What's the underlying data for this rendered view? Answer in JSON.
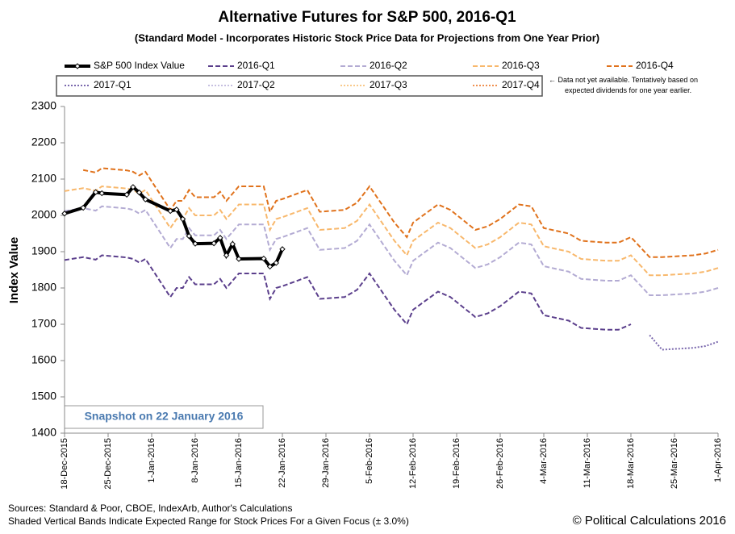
{
  "chart_data": {
    "type": "line",
    "title": "Alternative Futures for S&P 500, 2016-Q1",
    "subtitle": "(Standard Model - Incorporates Historic Stock Price Data for Projections from One Year Prior)",
    "y_label": "Index Value",
    "note": "← Data not yet available. Tentatively based on expected dividends for one year earlier.",
    "snapshot": "Snapshot on 22 January 2016",
    "sources": "Sources: Standard & Poor, CBOE, IndexArb, Author's Calculations",
    "bands_note": "Shaded Vertical Bands Indicate Expected Range for Stock Prices For a Given Focus (± 3.0%)",
    "copyright": "© Political Calculations 2016",
    "x": [
      "2015-12-18",
      "2015-12-21",
      "2015-12-23",
      "2015-12-24",
      "2015-12-28",
      "2015-12-29",
      "2015-12-30",
      "2015-12-31",
      "2016-01-04",
      "2016-01-05",
      "2016-01-06",
      "2016-01-07",
      "2016-01-08",
      "2016-01-11",
      "2016-01-12",
      "2016-01-13",
      "2016-01-14",
      "2016-01-15",
      "2016-01-19",
      "2016-01-20",
      "2016-01-21",
      "2016-01-22",
      "2016-01-26",
      "2016-01-28",
      "2016-02-01",
      "2016-02-03",
      "2016-02-05",
      "2016-02-09",
      "2016-02-11",
      "2016-02-12",
      "2016-02-16",
      "2016-02-18",
      "2016-02-22",
      "2016-02-24",
      "2016-02-26",
      "2016-02-29",
      "2016-03-02",
      "2016-03-04",
      "2016-03-08",
      "2016-03-10",
      "2016-03-14",
      "2016-03-16",
      "2016-03-18",
      "2016-03-21",
      "2016-03-23",
      "2016-03-28",
      "2016-03-30",
      "2016-04-01"
    ],
    "series": [
      {
        "name": "S&P 500 Index Value",
        "color": "#000000",
        "style": "solid",
        "values": [
          2005,
          2021,
          2064,
          2061,
          2057,
          2078,
          2063,
          2044,
          2012,
          2016,
          1990,
          1943,
          1922,
          1923,
          1938,
          1890,
          1921,
          1880,
          1881,
          1859,
          1869,
          1907,
          null,
          null,
          null,
          null,
          null,
          null,
          null,
          null,
          null,
          null,
          null,
          null,
          null,
          null,
          null,
          null,
          null,
          null,
          null,
          null,
          null,
          null,
          null,
          null,
          null,
          null
        ]
      },
      {
        "name": "2016-Q1",
        "color": "#5b3f8c",
        "style": "dashed",
        "values": [
          1877,
          1885,
          1878,
          1890,
          1884,
          1880,
          1870,
          1880,
          1775,
          1800,
          1800,
          1830,
          1810,
          1810,
          1825,
          1800,
          1820,
          1840,
          1840,
          1770,
          1800,
          1805,
          1830,
          1770,
          1775,
          1795,
          1840,
          1740,
          1700,
          1740,
          1790,
          1775,
          1720,
          1730,
          1750,
          1790,
          1785,
          1725,
          1710,
          1690,
          1685,
          1685,
          1700,
          null,
          null,
          null,
          null,
          null
        ]
      },
      {
        "name": "2016-Q2",
        "color": "#b3abd3",
        "style": "dashed",
        "values": [
          2012,
          2020,
          2013,
          2025,
          2019,
          2015,
          2005,
          2015,
          1910,
          1935,
          1935,
          1965,
          1945,
          1945,
          1960,
          1935,
          1955,
          1975,
          1975,
          1905,
          1935,
          1940,
          1965,
          1905,
          1910,
          1930,
          1975,
          1875,
          1835,
          1875,
          1925,
          1910,
          1855,
          1865,
          1885,
          1925,
          1920,
          1860,
          1845,
          1825,
          1820,
          1820,
          1835,
          1780,
          1780,
          1785,
          1790,
          1800
        ]
      },
      {
        "name": "2016-Q3",
        "color": "#f8b86c",
        "style": "dashed",
        "values": [
          2067,
          2075,
          2068,
          2080,
          2074,
          2070,
          2060,
          2070,
          1965,
          1990,
          1990,
          2020,
          2000,
          2000,
          2015,
          1990,
          2010,
          2030,
          2030,
          1960,
          1990,
          1995,
          2020,
          1960,
          1965,
          1985,
          2030,
          1930,
          1890,
          1930,
          1980,
          1965,
          1910,
          1920,
          1940,
          1980,
          1975,
          1915,
          1900,
          1880,
          1875,
          1875,
          1890,
          1835,
          1835,
          1840,
          1845,
          1855
        ]
      },
      {
        "name": "2016-Q4",
        "color": "#e0721c",
        "style": "dashed",
        "values": [
          null,
          2125,
          2118,
          2130,
          2124,
          2120,
          2110,
          2120,
          2015,
          2040,
          2040,
          2070,
          2050,
          2050,
          2065,
          2040,
          2060,
          2080,
          2080,
          2010,
          2040,
          2045,
          2070,
          2010,
          2015,
          2035,
          2080,
          1980,
          1940,
          1980,
          2030,
          2015,
          1960,
          1970,
          1990,
          2030,
          2025,
          1965,
          1950,
          1930,
          1925,
          1925,
          1940,
          1885,
          1885,
          1890,
          1895,
          1905
        ]
      },
      {
        "name": "2017-Q1",
        "color": "#7a68ad",
        "style": "dotted",
        "values": [
          null,
          null,
          null,
          null,
          null,
          null,
          null,
          null,
          null,
          null,
          null,
          null,
          null,
          null,
          null,
          null,
          null,
          null,
          null,
          null,
          null,
          null,
          null,
          null,
          null,
          null,
          null,
          null,
          null,
          null,
          null,
          null,
          null,
          null,
          null,
          null,
          null,
          null,
          null,
          null,
          null,
          null,
          null,
          1670,
          1630,
          1635,
          1640,
          1652
        ]
      },
      {
        "name": "2017-Q2",
        "color": "#c6bfe0",
        "style": "dotted",
        "values": [
          null,
          null,
          null,
          null,
          null,
          null,
          null,
          null,
          null,
          null,
          null,
          null,
          null,
          null,
          null,
          null,
          null,
          null,
          null,
          null,
          null,
          null,
          null,
          null,
          null,
          null,
          null,
          null,
          null,
          null,
          null,
          null,
          null,
          null,
          null,
          null,
          null,
          null,
          null,
          null,
          null,
          null,
          null,
          null,
          null,
          null,
          null,
          null
        ]
      },
      {
        "name": "2017-Q3",
        "color": "#f9c98a",
        "style": "dotted",
        "values": [
          null,
          null,
          null,
          null,
          null,
          null,
          null,
          null,
          null,
          null,
          null,
          null,
          null,
          null,
          null,
          null,
          null,
          null,
          null,
          null,
          null,
          null,
          null,
          null,
          null,
          null,
          null,
          null,
          null,
          null,
          null,
          null,
          null,
          null,
          null,
          null,
          null,
          null,
          null,
          null,
          null,
          null,
          null,
          null,
          null,
          null,
          null,
          null
        ]
      },
      {
        "name": "2017-Q4",
        "color": "#f09050",
        "style": "dotted",
        "values": [
          null,
          null,
          null,
          null,
          null,
          null,
          null,
          null,
          null,
          null,
          null,
          null,
          null,
          null,
          null,
          null,
          null,
          null,
          null,
          null,
          null,
          null,
          null,
          null,
          null,
          null,
          null,
          null,
          null,
          null,
          null,
          null,
          null,
          null,
          null,
          null,
          null,
          null,
          null,
          null,
          null,
          null,
          null,
          null,
          null,
          null,
          null,
          null
        ]
      }
    ],
    "xlim": [
      "2015-12-18",
      "2016-04-01"
    ],
    "xticks": [
      {
        "value": "2015-12-18",
        "label": "18-Dec-2015"
      },
      {
        "value": "2015-12-25",
        "label": "25-Dec-2015"
      },
      {
        "value": "2016-01-01",
        "label": "1-Jan-2016"
      },
      {
        "value": "2016-01-08",
        "label": "8-Jan-2016"
      },
      {
        "value": "2016-01-15",
        "label": "15-Jan-2016"
      },
      {
        "value": "2016-01-22",
        "label": "22-Jan-2016"
      },
      {
        "value": "2016-01-29",
        "label": "29-Jan-2016"
      },
      {
        "value": "2016-02-05",
        "label": "5-Feb-2016"
      },
      {
        "value": "2016-02-12",
        "label": "12-Feb-2016"
      },
      {
        "value": "2016-02-19",
        "label": "19-Feb-2016"
      },
      {
        "value": "2016-02-26",
        "label": "26-Feb-2016"
      },
      {
        "value": "2016-03-04",
        "label": "4-Mar-2016"
      },
      {
        "value": "2016-03-11",
        "label": "11-Mar-2016"
      },
      {
        "value": "2016-03-18",
        "label": "18-Mar-2016"
      },
      {
        "value": "2016-03-25",
        "label": "25-Mar-2016"
      },
      {
        "value": "2016-04-01",
        "label": "1-Apr-2016"
      }
    ],
    "ylim": [
      1400,
      2300
    ],
    "yticks": [
      1400,
      1500,
      1600,
      1700,
      1800,
      1900,
      2000,
      2100,
      2200,
      2300
    ],
    "grid": false
  }
}
